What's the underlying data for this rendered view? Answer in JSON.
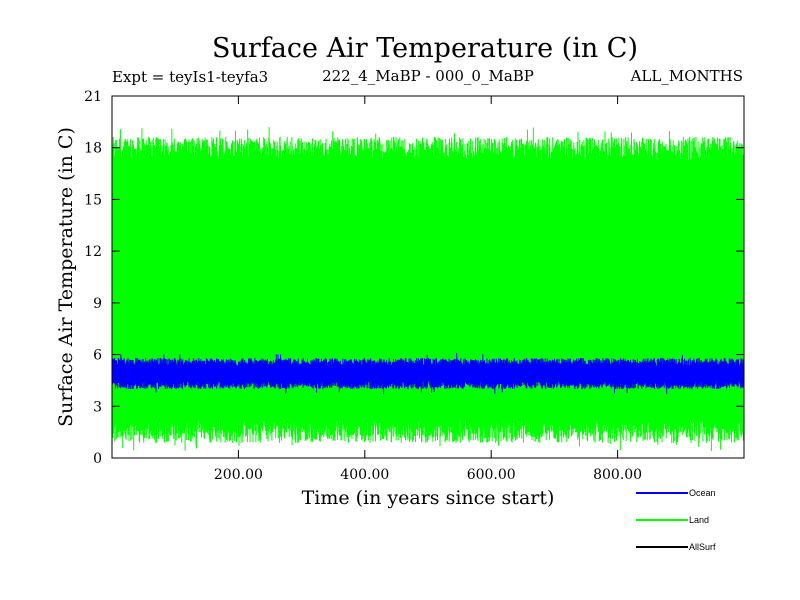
{
  "chart_data": {
    "type": "line",
    "title": "Surface Air Temperature (in C)",
    "subtitle_left": "Expt = teyIs1-teyfa3",
    "subtitle_center": "222_4_MaBP - 000_0_MaBP",
    "subtitle_right": "ALL_MONTHS",
    "xlabel": "Time (in years since start)",
    "ylabel": "Surface Air Temperature (in C)",
    "xlim": [
      0,
      1000
    ],
    "ylim": [
      0,
      21
    ],
    "x_ticks": [
      200,
      400,
      600,
      800
    ],
    "x_tick_labels": [
      "200.00",
      "400.00",
      "600.00",
      "800.00"
    ],
    "y_ticks": [
      0,
      3,
      6,
      9,
      12,
      15,
      18,
      21
    ],
    "y_tick_labels": [
      "0",
      "3",
      "6",
      "9",
      "12",
      "15",
      "18",
      "21"
    ],
    "series": [
      {
        "name": "Land",
        "color": "#00ff00",
        "seasonal_min": 1.5,
        "seasonal_max": 18.0,
        "min_extreme": 0.4,
        "max_extreme": 19.2,
        "note": "monthly values oscillate between the seasonal min and max every year"
      },
      {
        "name": "Ocean",
        "color": "#0000ff",
        "seasonal_min": 4.2,
        "seasonal_max": 5.6,
        "min_extreme": 3.7,
        "max_extreme": 6.1
      },
      {
        "name": "AllSurf",
        "color": "#000000"
      }
    ],
    "legend": {
      "placement": "bottom-right",
      "entries": [
        "Ocean",
        "Land",
        "AllSurf"
      ]
    }
  }
}
